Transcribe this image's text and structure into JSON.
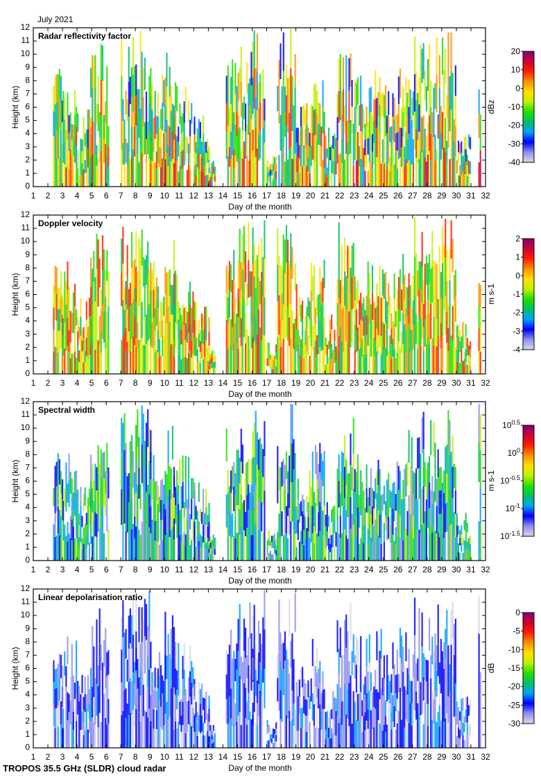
{
  "header": {
    "month_label": "July 2021"
  },
  "footer": {
    "instrument": "TROPOS 35.5 GHz (SLDR) cloud radar"
  },
  "chart_data": [
    {
      "type": "heatmap",
      "title": "Radar reflectivity factor",
      "xlabel": "Day of the month",
      "ylabel": "Height (km)",
      "xlim": [
        1,
        32
      ],
      "ylim": [
        0,
        12
      ],
      "colorbar": {
        "label": "dBz",
        "range": [
          -40,
          20
        ],
        "ticks": [
          "20",
          "10",
          "0",
          "-10",
          "-20",
          "-30",
          "-40"
        ]
      }
    },
    {
      "type": "heatmap",
      "title": "Doppler velocity",
      "xlabel": "Day of the month",
      "ylabel": "Height (km)",
      "xlim": [
        1,
        32
      ],
      "ylim": [
        0,
        12
      ],
      "colorbar": {
        "label": "m s-1",
        "range": [
          -4,
          2
        ],
        "ticks": [
          "2",
          "1",
          "0",
          "-1",
          "-2",
          "-3",
          "-4"
        ]
      }
    },
    {
      "type": "heatmap",
      "title": "Spectral width",
      "xlabel": "Day of the month",
      "ylabel": "Height (km)",
      "xlim": [
        1,
        32
      ],
      "ylim": [
        0,
        12
      ],
      "colorbar": {
        "label": "m s-1",
        "range": [
          -1.5,
          0.5
        ],
        "scale": "log10",
        "ticks": [
          "10^0.5",
          "10^0",
          "10^-0.5",
          "10^-1",
          "10^-1.5"
        ]
      }
    },
    {
      "type": "heatmap",
      "title": "Linear depolarisation ratio",
      "xlabel": "Day of the month",
      "ylabel": "Height (km)",
      "xlim": [
        1,
        32
      ],
      "ylim": [
        0,
        12
      ],
      "colorbar": {
        "label": "dB",
        "range": [
          -30,
          0
        ],
        "ticks": [
          "0",
          "-5",
          "-10",
          "-15",
          "-20",
          "-25",
          "-30"
        ]
      }
    }
  ],
  "axes": {
    "x_ticks": [
      "1",
      "2",
      "3",
      "4",
      "5",
      "6",
      "7",
      "8",
      "9",
      "10",
      "11",
      "12",
      "13",
      "14",
      "15",
      "16",
      "17",
      "18",
      "19",
      "20",
      "21",
      "22",
      "23",
      "24",
      "25",
      "26",
      "27",
      "28",
      "29",
      "30",
      "31",
      "32"
    ],
    "y_ticks": [
      "0",
      "1",
      "2",
      "3",
      "4",
      "5",
      "6",
      "7",
      "8",
      "9",
      "10",
      "11",
      "12"
    ]
  },
  "cloud_segments_day_start_end_topkm": [
    [
      2.35,
      3.0,
      9
    ],
    [
      3.0,
      4.0,
      8.5
    ],
    [
      4.0,
      4.9,
      6
    ],
    [
      4.9,
      6.1,
      10.8
    ],
    [
      7.0,
      8.0,
      11.5
    ],
    [
      8.0,
      9.0,
      12
    ],
    [
      9.0,
      10.0,
      8.5
    ],
    [
      10.0,
      10.6,
      10.5
    ],
    [
      10.6,
      12.0,
      8
    ],
    [
      12.0,
      13.0,
      6
    ],
    [
      13.0,
      13.4,
      2
    ],
    [
      14.2,
      15.0,
      10
    ],
    [
      15.0,
      16.0,
      11.5
    ],
    [
      16.0,
      16.9,
      12
    ],
    [
      17.0,
      17.7,
      2.5
    ],
    [
      17.7,
      19.0,
      12
    ],
    [
      19.0,
      20.0,
      7
    ],
    [
      20.0,
      21.0,
      9
    ],
    [
      21.0,
      21.8,
      4.5
    ],
    [
      21.8,
      23.0,
      11.5
    ],
    [
      23.0,
      24.0,
      8.5
    ],
    [
      24.0,
      25.0,
      9
    ],
    [
      25.0,
      26.0,
      8
    ],
    [
      26.0,
      27.0,
      10
    ],
    [
      27.0,
      28.0,
      12
    ],
    [
      28.0,
      29.0,
      11.5
    ],
    [
      29.0,
      30.0,
      12
    ],
    [
      30.0,
      31.0,
      4
    ],
    [
      31.5,
      31.7,
      12
    ]
  ],
  "colors": {
    "colormap": [
      "#d8d8e8",
      "#9090f0",
      "#0000ff",
      "#00a0ff",
      "#00c060",
      "#20e000",
      "#c0f000",
      "#ffe000",
      "#ff9000",
      "#ff2000",
      "#d00030",
      "#800080"
    ],
    "axis": "#000000"
  }
}
